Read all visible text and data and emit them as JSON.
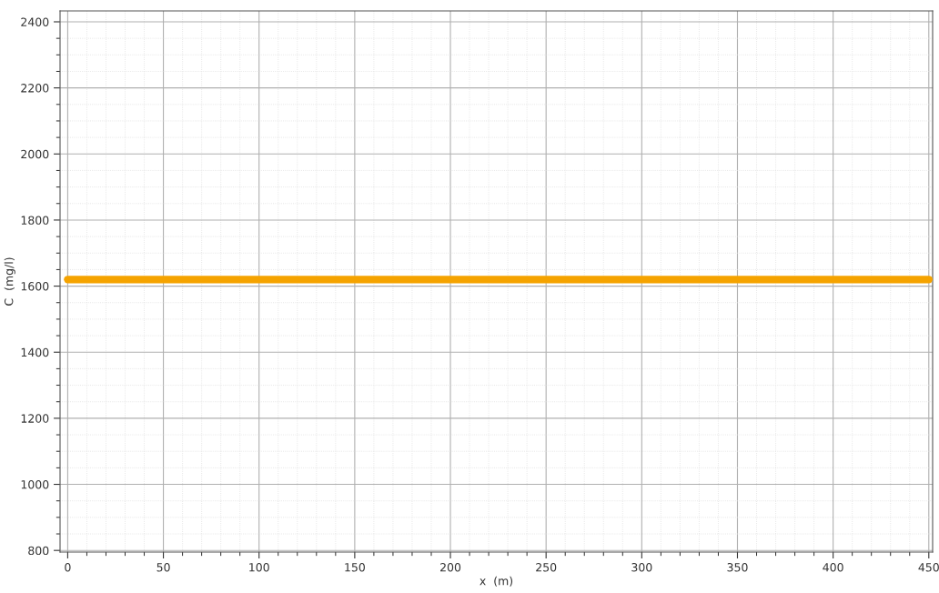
{
  "chart_data": {
    "type": "line",
    "xlabel": "x  (m)",
    "ylabel": "C  (mg/l)",
    "x": [
      0,
      450
    ],
    "series": [
      {
        "color": "#f5a300",
        "values": [
          1620,
          1620
        ]
      }
    ],
    "xlim": [
      -4,
      452
    ],
    "ylim": [
      795,
      2433
    ],
    "xticks": [
      0,
      50,
      100,
      150,
      200,
      250,
      300,
      350,
      400,
      450
    ],
    "yticks": [
      800,
      1000,
      1200,
      1400,
      1600,
      1800,
      2000,
      2200,
      2400
    ],
    "grid": true,
    "marker": "none",
    "line_style": "solid"
  }
}
